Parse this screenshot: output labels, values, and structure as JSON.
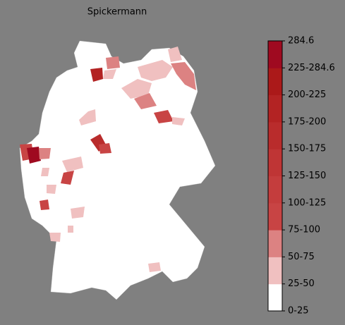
{
  "title": "Spickermann",
  "colorbar": {
    "ticks": [
      "0-25",
      "25-50",
      "50-75",
      "75-100",
      "100-125",
      "125-150",
      "150-175",
      "175-200",
      "200-225",
      "225-284.6",
      "284.6"
    ],
    "colors": [
      "#ffffff",
      "#f0c0c0",
      "#dc8282",
      "#c84444",
      "#c43d3d",
      "#bf3535",
      "#b92c2c",
      "#b32323",
      "#ab1919",
      "#9f0a20"
    ]
  }
}
